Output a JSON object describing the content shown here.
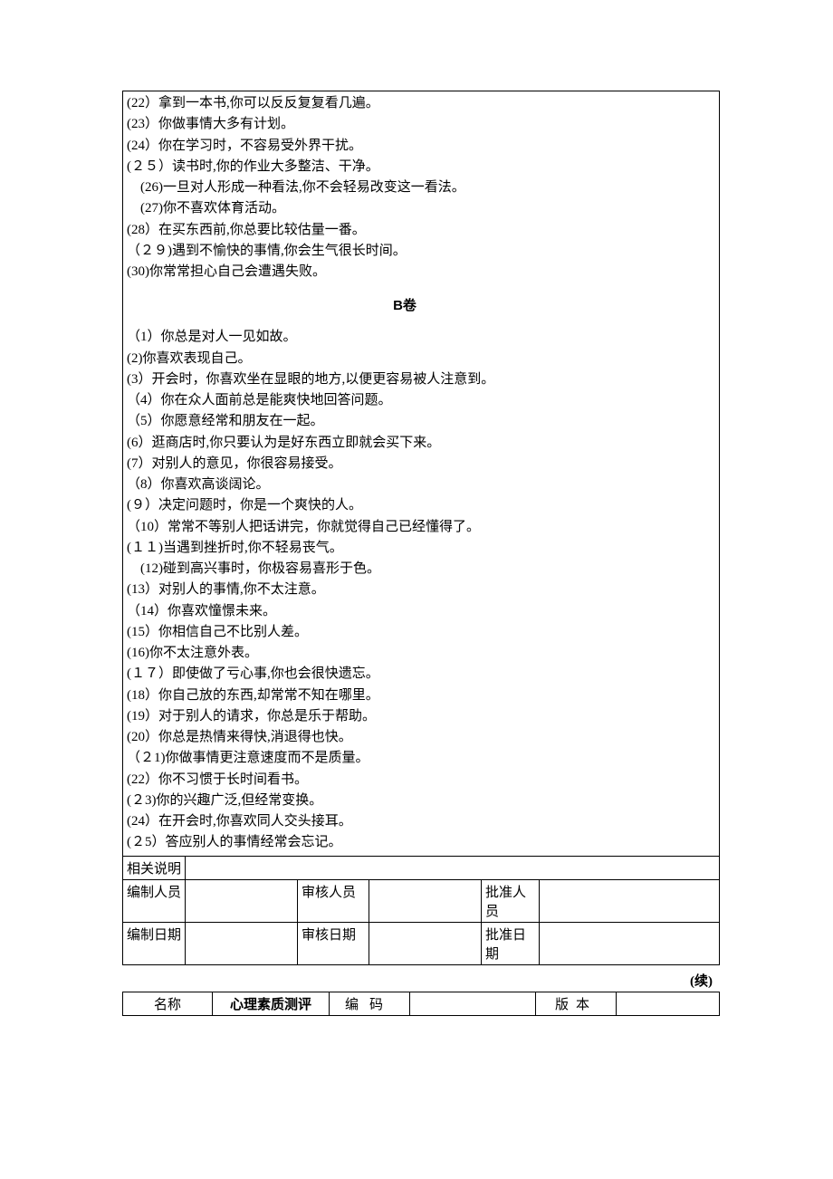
{
  "content": {
    "sectionA_items": [
      "(22）拿到一本书,你可以反反复复看几遍。",
      "(23）你做事情大多有计划。",
      "(24）你在学习时，不容易受外界干扰。",
      "(２５）读书时,你的作业大多整洁、干净。",
      "　(26)一旦对人形成一种看法,你不会轻易改变这一看法。",
      "　(27)你不喜欢体育活动。",
      "(28）在买东西前,你总要比较估量一番。",
      "（２９)遇到不愉快的事情,你会生气很长时间。",
      "(30)你常常担心自己会遭遇失败。"
    ],
    "sectionB_title": "B卷",
    "sectionB_items": [
      "（1）你总是对人一见如故。",
      "(2)你喜欢表现自己。",
      "(3）开会时，你喜欢坐在显眼的地方,以便更容易被人注意到。",
      "（4）你在众人面前总是能爽快地回答问题。",
      "（5）你愿意经常和朋友在一起。",
      "(6）逛商店时,你只要认为是好东西立即就会买下来。",
      "(7）对别人的意见，你很容易接受。",
      "（8）你喜欢高谈阔论。",
      "(９）决定问题时，你是一个爽快的人。",
      "（10）常常不等别人把话讲完，你就觉得自己已经懂得了。",
      "(１１)当遇到挫折时,你不轻易丧气。",
      "　(12)碰到高兴事时，你极容易喜形于色。",
      "(13）对别人的事情,你不太注意。",
      "（14）你喜欢憧憬未来。",
      "(15）你相信自己不比别人差。",
      "(16)你不太注意外表。",
      "(１７）即使做了亏心事,你也会很快遗忘。",
      "(18）你自己放的东西,却常常不知在哪里。",
      "(19）对于别人的请求，你总是乐于帮助。",
      "(20）你总是热情来得快,消退得也快。",
      "（２1)你做事情更注意速度而不是质量。",
      "(22）你不习惯于长时间看书。",
      "(２3)你的兴趣广泛,但经常变换。",
      "(24）在开会时,你喜欢同人交头接耳。",
      "(２5）答应别人的事情经常会忘记。"
    ]
  },
  "meta_rows": {
    "r1_label": "相关说明",
    "r2": {
      "c1": "编制人员",
      "c3": "审核人员",
      "c5": "批准人员"
    },
    "r3": {
      "c1": "编制日期",
      "c3": "审核日期",
      "c5": "批准日期"
    }
  },
  "continued_label": "(续)",
  "footer": {
    "name_label": "名称",
    "title": "心理素质测评",
    "code_label": "编码",
    "code_value": "",
    "version_label": "版本",
    "version_value": ""
  }
}
